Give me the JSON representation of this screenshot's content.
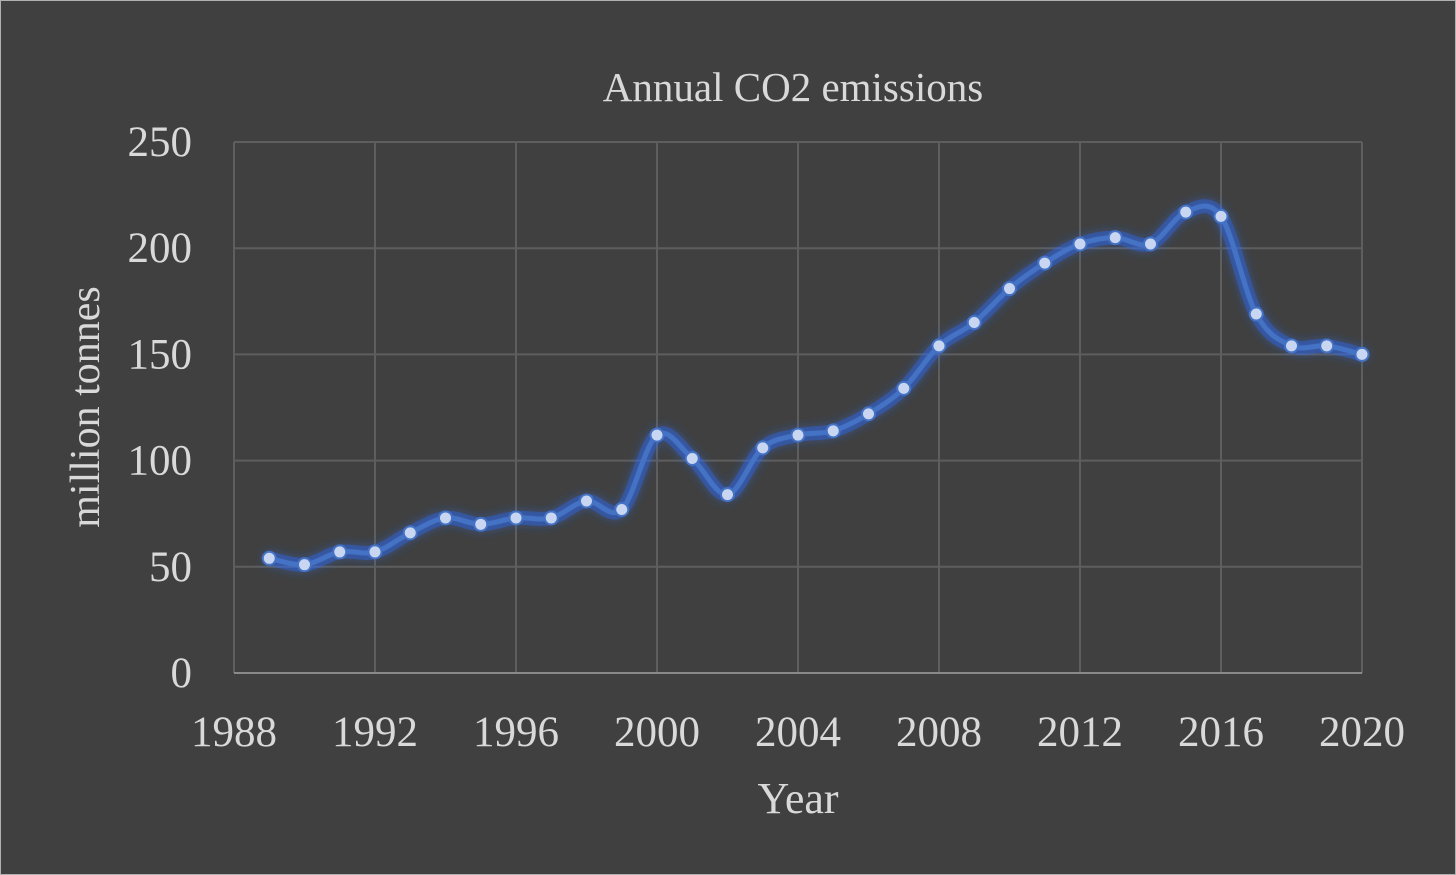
{
  "chart_data": {
    "type": "line",
    "title": "Annual CO2 emissions",
    "xlabel": "Year",
    "ylabel": "million tonnes",
    "xlim": [
      1988,
      2020
    ],
    "ylim": [
      0,
      250
    ],
    "x_ticks": [
      1988,
      1992,
      1996,
      2000,
      2004,
      2008,
      2012,
      2016,
      2020
    ],
    "y_ticks": [
      0,
      50,
      100,
      150,
      200,
      250
    ],
    "grid": true,
    "legend": "none",
    "smooth": true,
    "series": [
      {
        "x": [
          1989,
          1990,
          1991,
          1992,
          1993,
          1994,
          1995,
          1996,
          1997,
          1998,
          1999,
          2000,
          2001,
          2002,
          2003,
          2004,
          2005,
          2006,
          2007,
          2008,
          2009,
          2010,
          2011,
          2012,
          2013,
          2014,
          2015,
          2016,
          2017,
          2018,
          2019,
          2020
        ],
        "values": [
          54,
          51,
          57,
          57,
          66,
          73,
          70,
          73,
          73,
          81,
          77,
          112,
          101,
          84,
          106,
          112,
          114,
          122,
          134,
          154,
          165,
          181,
          193,
          202,
          205,
          202,
          217,
          215,
          169,
          154,
          154,
          150
        ]
      }
    ]
  },
  "colors": {
    "background": "#404040",
    "grid": "#5e5e5e",
    "axis": "#8a8a8a",
    "text": "#d9d9d9",
    "line": "#4472c4",
    "glow": "#2f6cff",
    "marker": "#c9d6f2"
  }
}
